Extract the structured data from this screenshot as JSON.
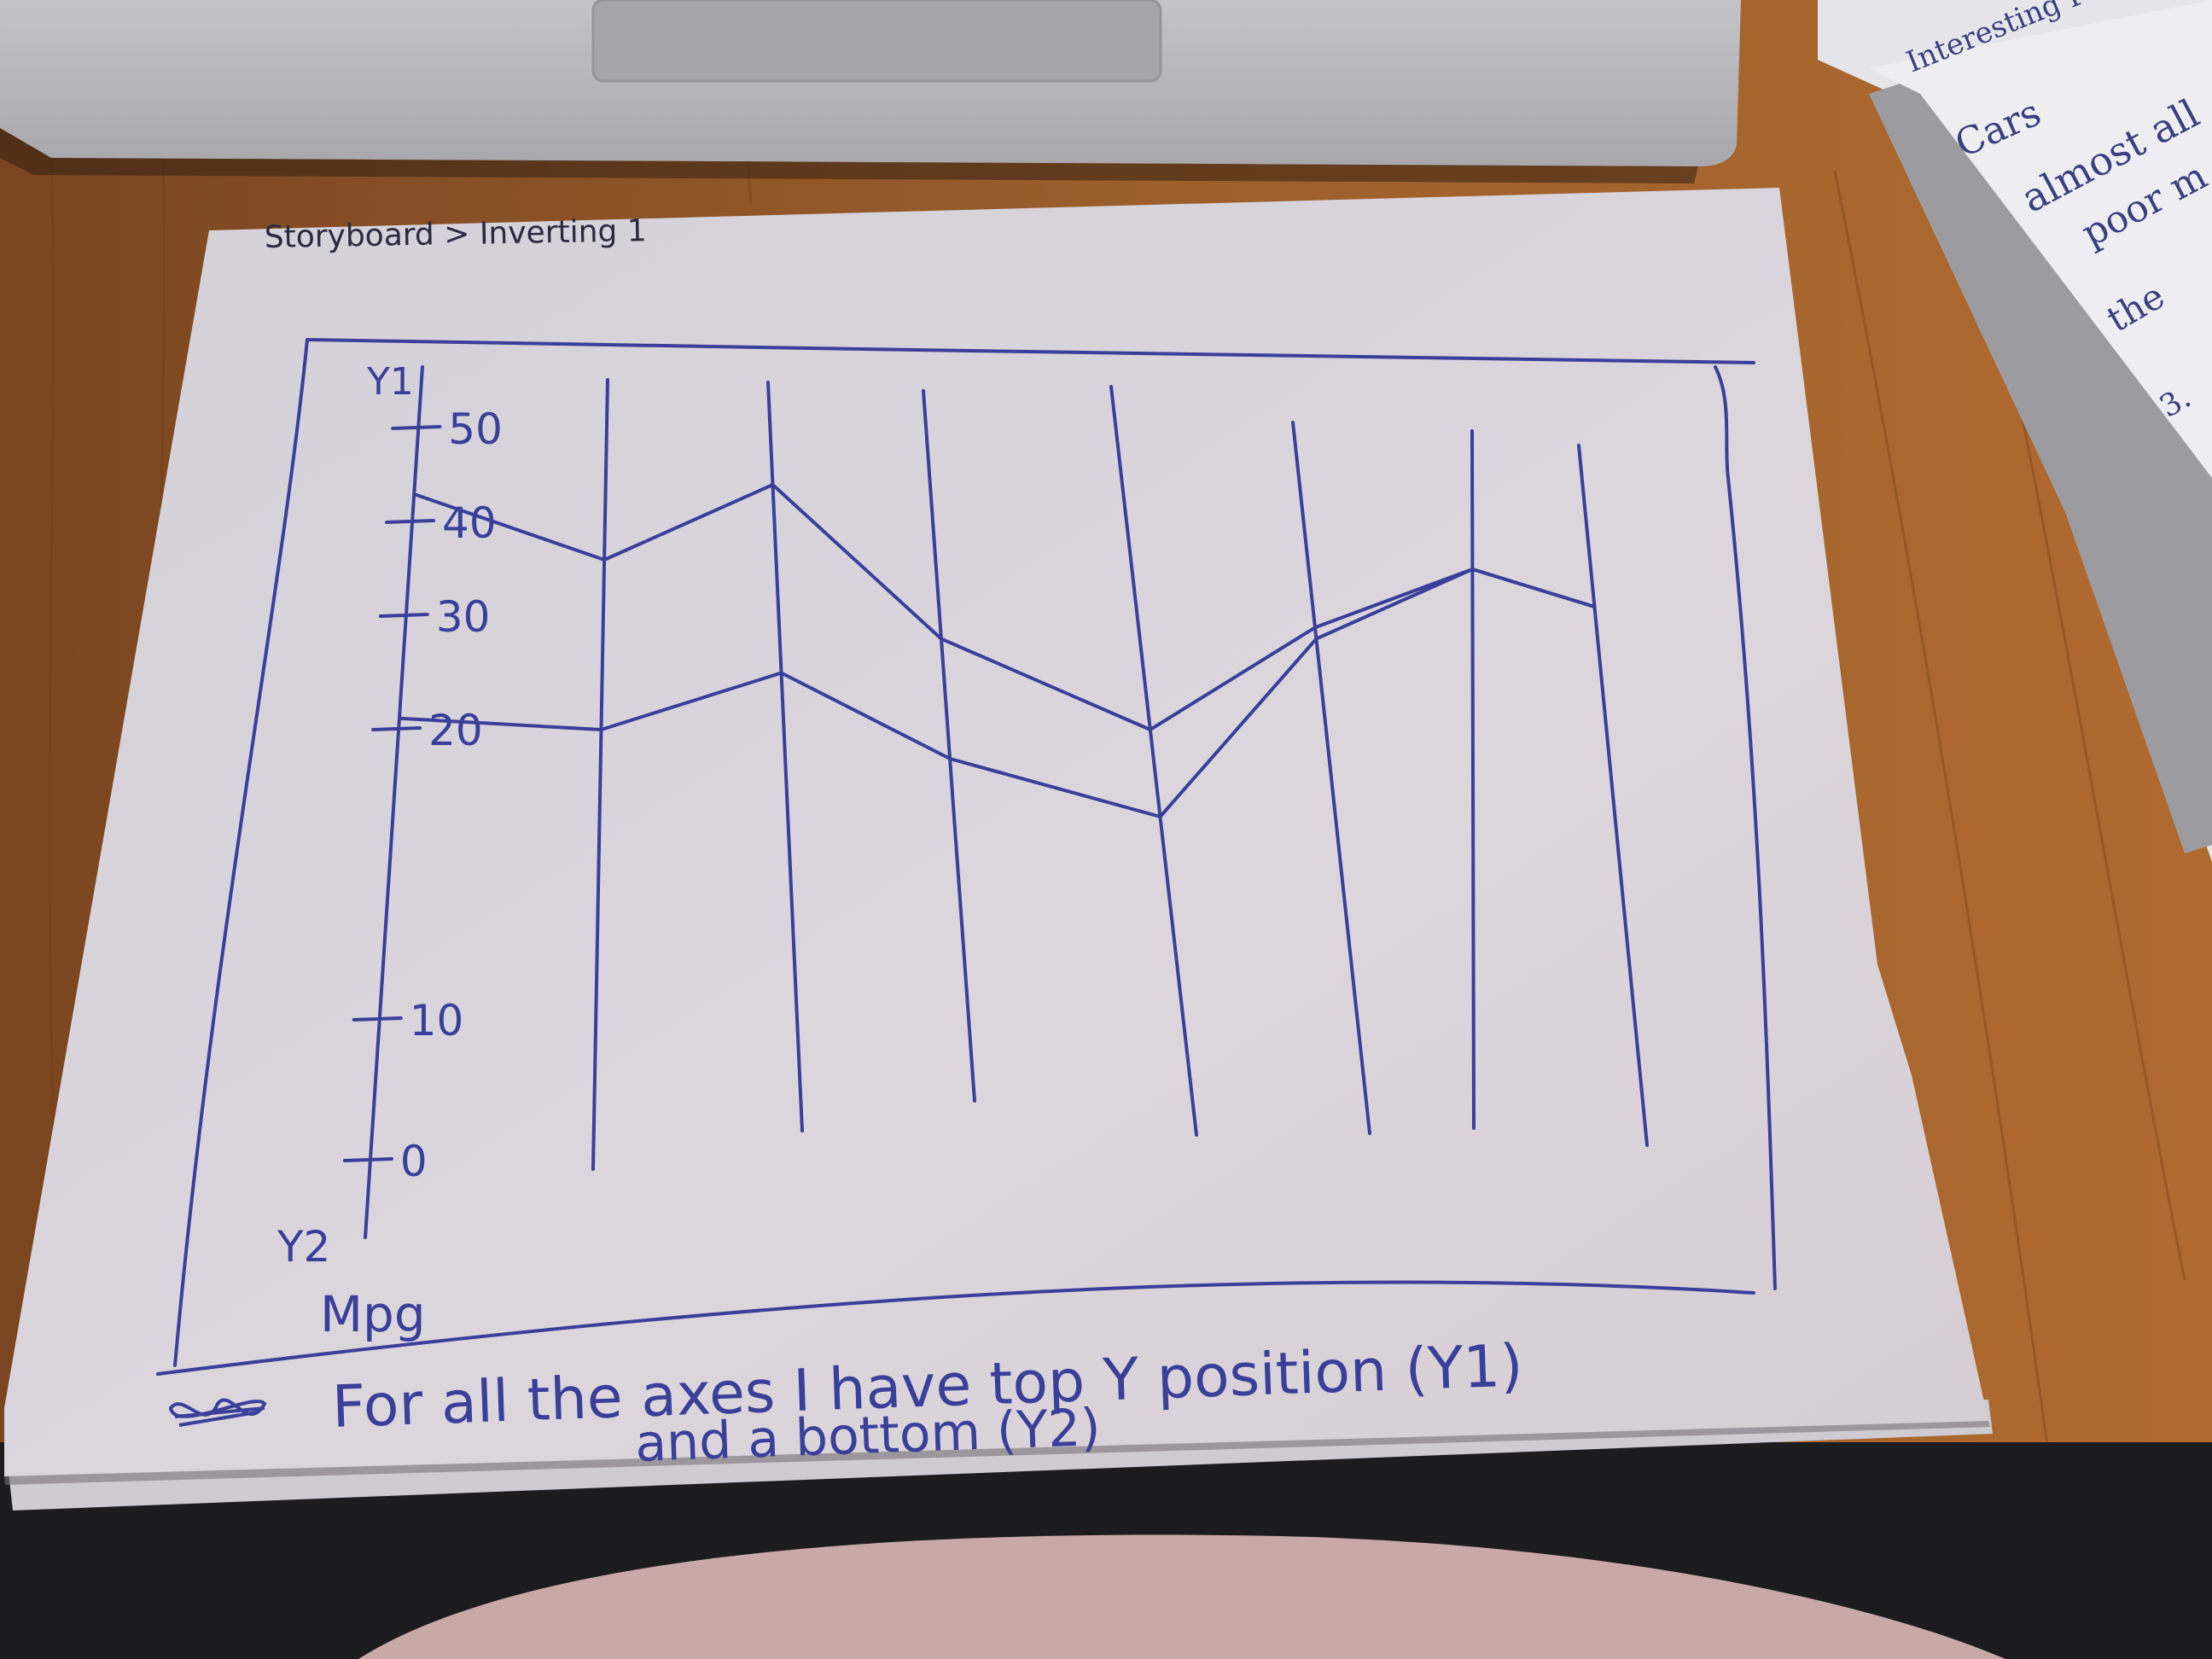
{
  "photo": {
    "subject": "hand-drawn storyboard sketch of a parallel coordinates chart",
    "colors": {
      "table": "#8a5228",
      "paper": "#d8d4dc",
      "ink": "#3a3f9a",
      "laptop": "#b8b8bc",
      "fabric": "#c9a9a8"
    }
  },
  "sheet": {
    "header": "Storyboard > Inverting 1",
    "caption_line1": "For all the axes I have top Y position (Y1)",
    "caption_line2": "and a bottom (Y2)",
    "scribble": "scribble-mark"
  },
  "chart_data": {
    "type": "line",
    "axis_count": 8,
    "first_axis": {
      "top_label": "Y1",
      "bottom_label": "Y2",
      "unit_label": "Mpg",
      "ticks": [
        "50",
        "40",
        "30",
        "20",
        "10",
        "0"
      ]
    },
    "series": [
      {
        "values": [
          43,
          36,
          44,
          28,
          20,
          29,
          35,
          31
        ]
      },
      {
        "values": [
          21,
          20,
          25,
          19,
          17,
          28,
          35,
          31
        ]
      }
    ],
    "grid": false
  },
  "side_note": {
    "lines": [
      "Interesting Fea",
      "Cars",
      "almost all",
      "poor m",
      "the",
      "3."
    ]
  }
}
